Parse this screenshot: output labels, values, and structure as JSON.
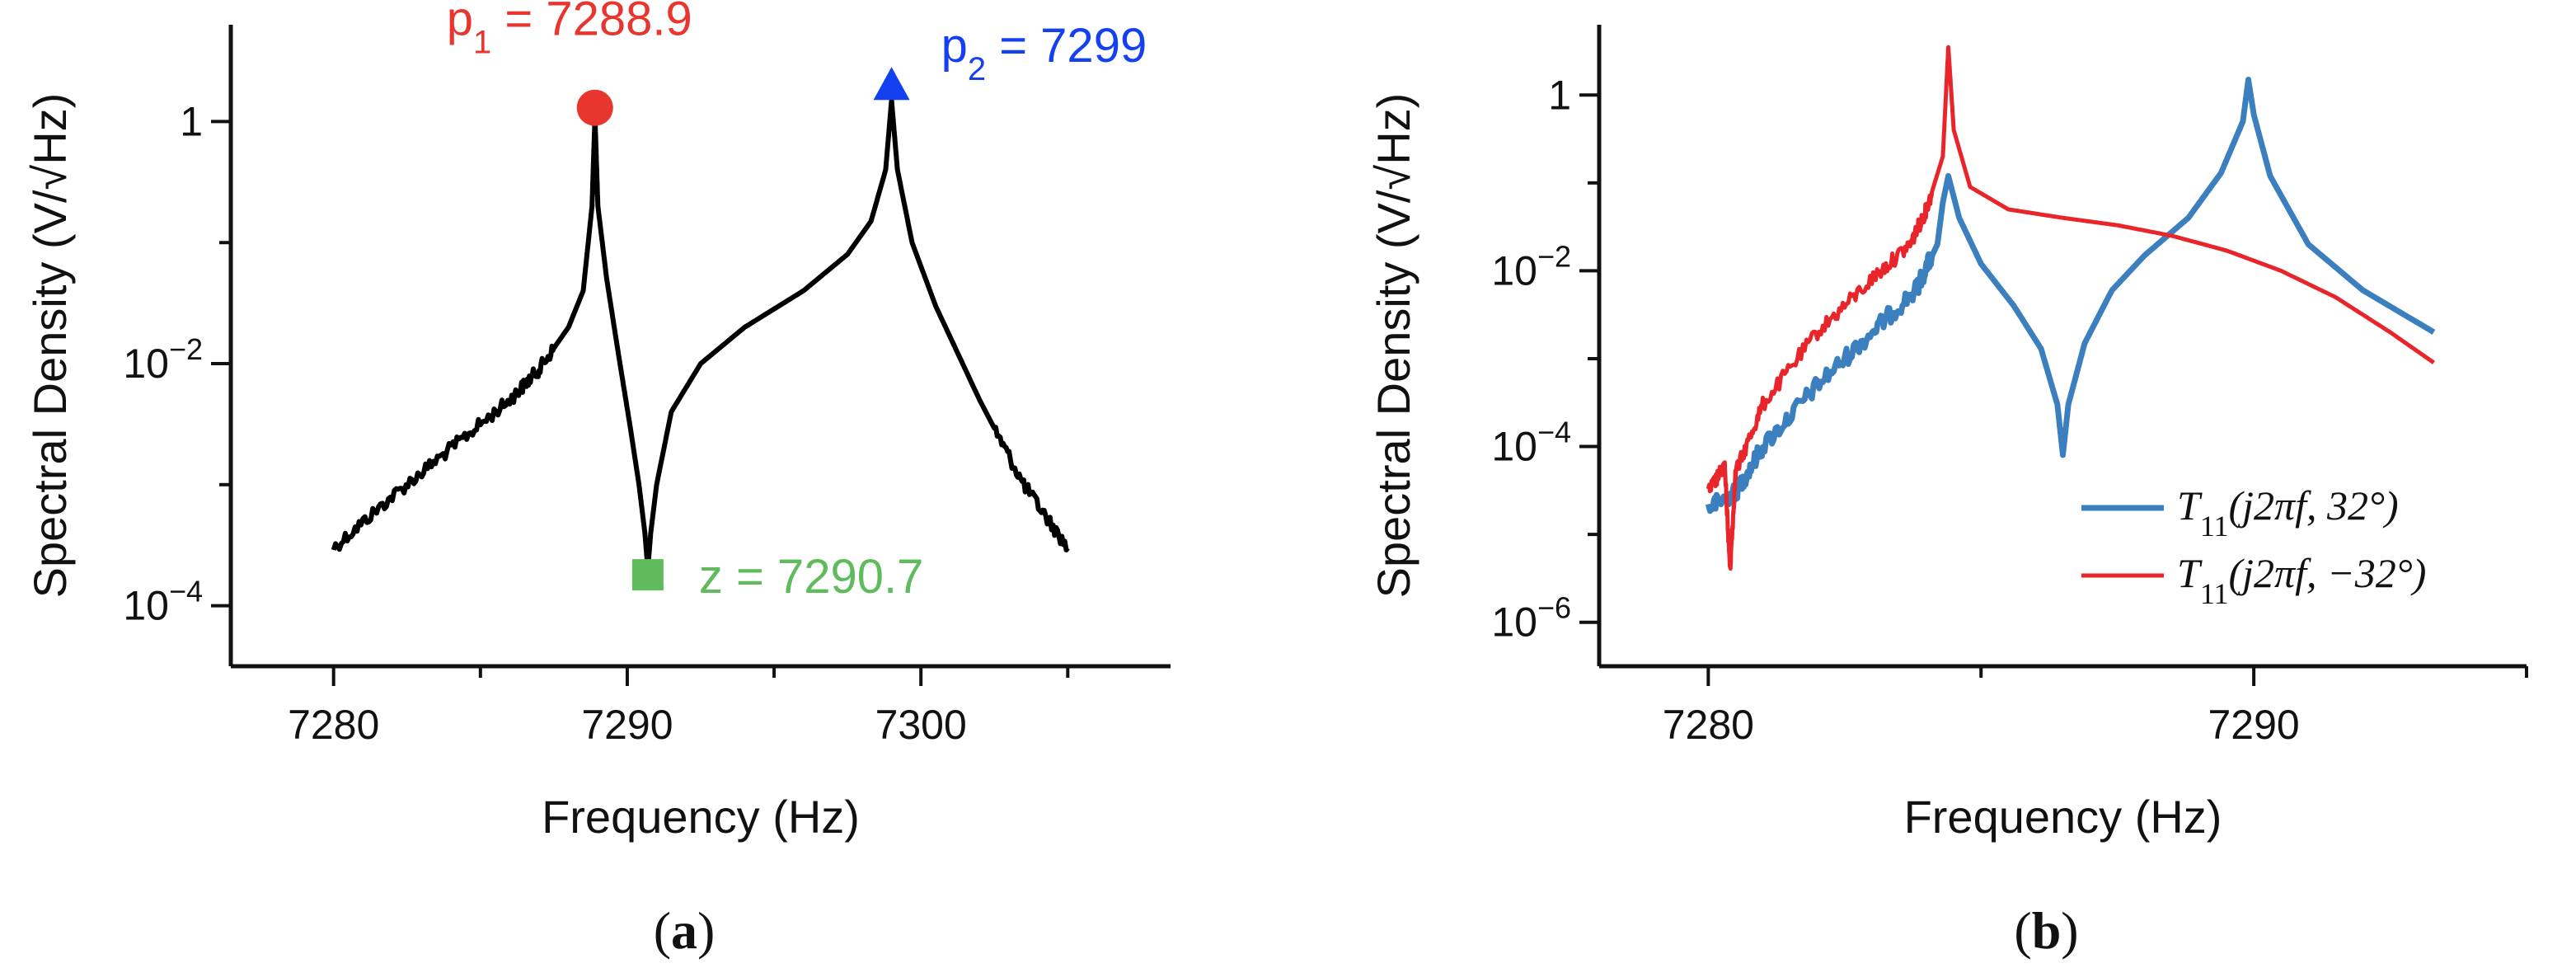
{
  "chart_data": [
    {
      "type": "line",
      "panel": "a",
      "panel_label": {
        "pre": "(",
        "bold": "a",
        "post": ")"
      },
      "xlabel": "Frequency (Hz)",
      "ylabel": "Spectral Density (V/√Hz)",
      "yscale": "log",
      "xlim": [
        7276.5,
        7308.5
      ],
      "ylim_log10": [
        -4.5,
        0.8
      ],
      "xticks": [
        7280,
        7290,
        7300
      ],
      "xtick_labels": [
        "7280",
        "7290",
        "7300"
      ],
      "xticks_minor": [
        7285,
        7295,
        7305
      ],
      "yticks_log10": [
        0,
        -2,
        -4
      ],
      "ytick_labels": [
        {
          "base": "1",
          "exp": ""
        },
        {
          "base": "10",
          "exp": "−2"
        },
        {
          "base": "10",
          "exp": "−4"
        }
      ],
      "yticks_minor_log10": [
        -1,
        -3
      ],
      "series": [
        {
          "name": "spectrum",
          "color": "#000000",
          "x": [
            7280,
            7282,
            7284,
            7286,
            7287,
            7288,
            7288.5,
            7288.8,
            7288.9,
            7289.0,
            7289.3,
            7289.7,
            7290.1,
            7290.4,
            7290.6,
            7290.7,
            7290.8,
            7291.0,
            7291.5,
            7292.5,
            7294,
            7296,
            7297.5,
            7298.3,
            7298.8,
            7299,
            7299.2,
            7299.7,
            7300.5,
            7302,
            7303.5,
            7305
          ],
          "y": [
            0.0003,
            0.0008,
            0.002,
            0.005,
            0.009,
            0.02,
            0.04,
            0.2,
            1.1,
            0.2,
            0.05,
            0.012,
            0.003,
            0.001,
            0.0004,
            0.0002,
            0.0004,
            0.001,
            0.004,
            0.01,
            0.02,
            0.04,
            0.08,
            0.15,
            0.4,
            1.5,
            0.4,
            0.1,
            0.03,
            0.005,
            0.001,
            0.0003
          ]
        }
      ],
      "markers": [
        {
          "label_base": "p",
          "label_sub": "1",
          "label_rest": " = 7288.9",
          "x": 7288.9,
          "y": 1.3,
          "shape": "circle",
          "color": "#E8352E"
        },
        {
          "label_base": "p",
          "label_sub": "2",
          "label_rest": " = 7299",
          "x": 7299,
          "y": 2.0,
          "shape": "triangle",
          "color": "#1540F0"
        },
        {
          "label_base": "z",
          "label_sub": "",
          "label_rest": " = 7290.7",
          "x": 7290.7,
          "y": 0.00018,
          "shape": "square",
          "color": "#5FBB5B"
        }
      ]
    },
    {
      "type": "line",
      "panel": "b",
      "panel_label": {
        "pre": "(",
        "bold": "b",
        "post": ")"
      },
      "xlabel": "Frequency (Hz)",
      "ylabel": "Spectral Density (V/√Hz)",
      "yscale": "log",
      "xlim": [
        7278,
        7295
      ],
      "ylim_log10": [
        -6.5,
        0.8
      ],
      "xticks": [
        7280,
        7290
      ],
      "xtick_labels": [
        "7280",
        "7290"
      ],
      "xticks_minor": [
        7285,
        7295
      ],
      "yticks_log10": [
        0,
        -2,
        -4,
        -6
      ],
      "ytick_labels": [
        {
          "base": "1",
          "exp": ""
        },
        {
          "base": "10",
          "exp": "−2"
        },
        {
          "base": "10",
          "exp": "−4"
        },
        {
          "base": "10",
          "exp": "−6"
        }
      ],
      "yticks_minor_log10": [
        -1,
        -3,
        -5
      ],
      "series": [
        {
          "name": "T11(j2πf, 32°)",
          "legend_math": "T",
          "legend_sub": "11",
          "legend_args": "(j2πf, 32°)",
          "color": "#3C7FBF",
          "x": [
            7280,
            7280.5,
            7281,
            7282,
            7283,
            7283.8,
            7284.2,
            7284.3,
            7284.4,
            7284.6,
            7285,
            7285.6,
            7286.1,
            7286.4,
            7286.5,
            7286.6,
            7286.9,
            7287.4,
            7288,
            7288.8,
            7289.4,
            7289.8,
            7289.9,
            7290.0,
            7290.3,
            7291,
            7292,
            7293.3
          ],
          "y": [
            2e-05,
            3e-05,
            0.0001,
            0.0005,
            0.002,
            0.006,
            0.02,
            0.06,
            0.12,
            0.04,
            0.012,
            0.004,
            0.0013,
            0.0003,
            8e-05,
            0.0003,
            0.0015,
            0.006,
            0.015,
            0.04,
            0.13,
            0.5,
            1.5,
            0.6,
            0.12,
            0.02,
            0.006,
            0.002
          ]
        },
        {
          "name": "T11(j2πf, −32°)",
          "legend_math": "T",
          "legend_sub": "11",
          "legend_args": "(j2πf, −32°)",
          "color": "#E8252A",
          "x": [
            7280,
            7280.3,
            7280.4,
            7280.5,
            7281,
            7282,
            7283,
            7283.7,
            7284.0,
            7284.3,
            7284.4,
            7284.5,
            7284.8,
            7285.5,
            7286.5,
            7287.5,
            7288.5,
            7289.5,
            7290.5,
            7291.5,
            7292.5,
            7293.3
          ],
          "y": [
            3e-05,
            6e-05,
            4e-06,
            5e-05,
            0.0003,
            0.002,
            0.008,
            0.02,
            0.05,
            0.2,
            3.5,
            0.4,
            0.09,
            0.05,
            0.04,
            0.033,
            0.025,
            0.017,
            0.01,
            0.005,
            0.002,
            0.0009
          ]
        }
      ]
    }
  ]
}
